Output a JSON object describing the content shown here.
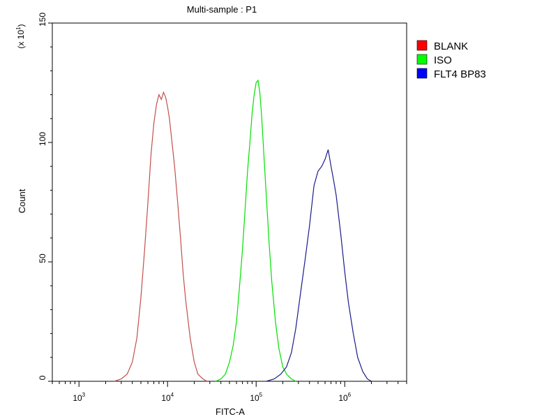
{
  "chart_data": {
    "type": "line",
    "title": "Multi-sample : P1",
    "xlabel": "FITC-A",
    "ylabel": "Count",
    "y_multiplier": {
      "base": "(x 10",
      "exp": "1",
      "close": ")"
    },
    "x_scale": "log",
    "xlim": [
      500,
      5000000
    ],
    "ylim": [
      0,
      150
    ],
    "x_ticks": [
      {
        "base": "10",
        "exp": "3",
        "value": 1000
      },
      {
        "base": "10",
        "exp": "4",
        "value": 10000
      },
      {
        "base": "10",
        "exp": "5",
        "value": 100000
      },
      {
        "base": "10",
        "exp": "6",
        "value": 1000000
      }
    ],
    "y_ticks": [
      "0",
      "50",
      "100",
      "150"
    ],
    "legend_position": "right",
    "series": [
      {
        "name": "BLANK",
        "color": "#c0504d",
        "swatch": "#ff0000",
        "x": [
          2500,
          3000,
          3500,
          4000,
          4500,
          5000,
          5500,
          6000,
          6500,
          7000,
          7500,
          8000,
          8500,
          9000,
          9500,
          10000,
          10500,
          11000,
          12000,
          13000,
          14000,
          15000,
          16000,
          18000,
          20000,
          22000,
          25000,
          28000
        ],
        "y": [
          0,
          1,
          3,
          8,
          18,
          35,
          55,
          75,
          95,
          108,
          116,
          120,
          118,
          121,
          119,
          115,
          110,
          103,
          90,
          75,
          60,
          45,
          34,
          18,
          8,
          3,
          1,
          0
        ]
      },
      {
        "name": "ISO",
        "color": "#00e000",
        "swatch": "#00ff00",
        "x": [
          35000,
          40000,
          45000,
          50000,
          55000,
          60000,
          65000,
          70000,
          75000,
          80000,
          85000,
          90000,
          95000,
          100000,
          105000,
          110000,
          115000,
          120000,
          130000,
          140000,
          150000,
          165000,
          180000,
          200000,
          220000,
          250000,
          280000
        ],
        "y": [
          0,
          1,
          3,
          8,
          15,
          25,
          40,
          55,
          72,
          88,
          100,
          112,
          120,
          125,
          126,
          121,
          112,
          100,
          78,
          58,
          42,
          25,
          14,
          6,
          3,
          1,
          0
        ]
      },
      {
        "name": "FLT4 BP83",
        "color": "#1a1a8c",
        "swatch": "#0000ff",
        "x": [
          130000,
          160000,
          190000,
          220000,
          250000,
          280000,
          320000,
          360000,
          400000,
          450000,
          500000,
          550000,
          600000,
          650000,
          700000,
          750000,
          800000,
          900000,
          1000000,
          1100000,
          1250000,
          1400000,
          1600000,
          1800000,
          2000000
        ],
        "y": [
          0,
          1,
          3,
          6,
          12,
          22,
          38,
          52,
          65,
          82,
          88,
          90,
          93,
          97,
          90,
          84,
          78,
          62,
          46,
          33,
          20,
          10,
          4,
          1,
          0
        ]
      }
    ]
  }
}
